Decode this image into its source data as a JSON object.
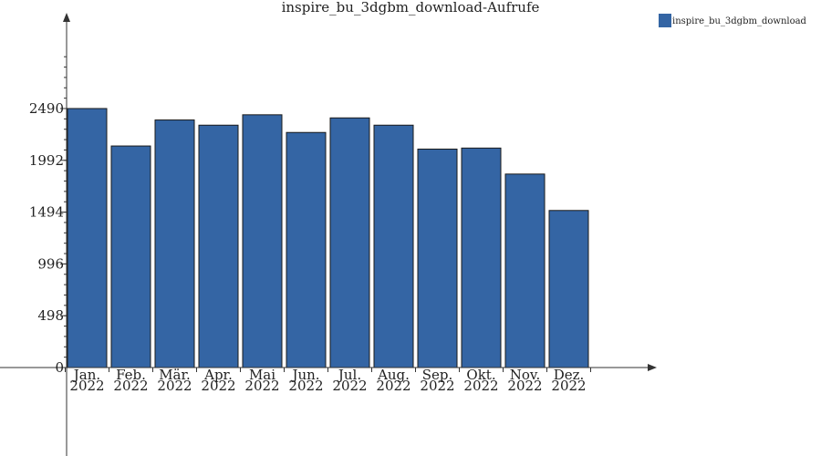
{
  "chart_data": {
    "type": "bar",
    "title": "inspire_bu_3dgbm_download-Aufrufe",
    "categories": [
      [
        "Jan.",
        "2022"
      ],
      [
        "Feb.",
        "2022"
      ],
      [
        "Mär.",
        "2022"
      ],
      [
        "Apr.",
        "2022"
      ],
      [
        "Mai",
        "2022"
      ],
      [
        "Jun.",
        "2022"
      ],
      [
        "Jul.",
        "2022"
      ],
      [
        "Aug.",
        "2022"
      ],
      [
        "Sep.",
        "2022"
      ],
      [
        "Okt.",
        "2022"
      ],
      [
        "Nov.",
        "2022"
      ],
      [
        "Dez.",
        "2022"
      ]
    ],
    "series": [
      {
        "name": "inspire_bu_3dgbm_download",
        "color": "#3465a4",
        "values": [
          2490,
          2130,
          2380,
          2330,
          2430,
          2260,
          2400,
          2330,
          2100,
          2110,
          1860,
          1510
        ]
      }
    ],
    "yticks": [
      0,
      498,
      996,
      1494,
      1992,
      2490
    ],
    "ylim": [
      0,
      3318
    ],
    "grid": false,
    "legend": "top-right"
  }
}
